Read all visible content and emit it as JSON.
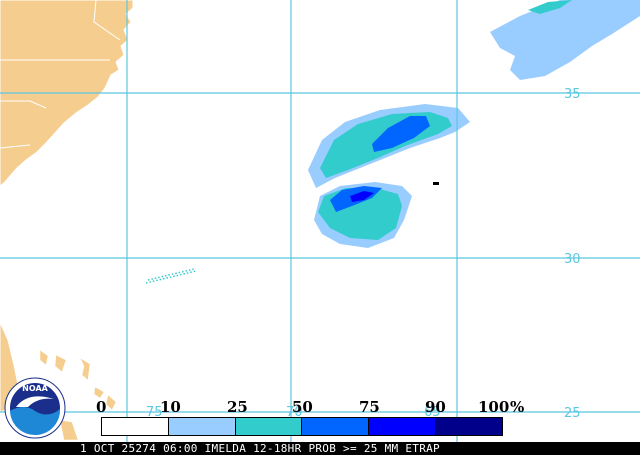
{
  "map": {
    "colors": {
      "ocean": "#ffffff",
      "land": "#f5cd8f",
      "grid": "#5ac8e0",
      "prob_10": "#99ccff",
      "prob_25": "#33cccc",
      "prob_50": "#0066ff",
      "prob_75": "#0000ff",
      "prob_90": "#00008b"
    },
    "grid_labels": {
      "lat_35": "35",
      "lat_30": "30",
      "lat_25": "25",
      "lon_75": "75",
      "lon_70": "70",
      "lon_65": "65"
    }
  },
  "legend": {
    "labels": [
      "0",
      "10",
      "25",
      "50",
      "75",
      "90",
      "100"
    ],
    "unit": "%",
    "swatches": [
      "#ffffff",
      "#99ccff",
      "#33cccc",
      "#0066ff",
      "#0000ff",
      "#00008b"
    ]
  },
  "caption": "1 OCT 25274 06:00 IMELDA 12-18HR PROB >= 25 MM ETRAP",
  "logo": {
    "text": "NOAA",
    "colors": {
      "outer": "#ffffff",
      "inner_top": "#1a2f8c",
      "inner_bottom": "#1e88d6",
      "bird": "#ffffff"
    }
  }
}
